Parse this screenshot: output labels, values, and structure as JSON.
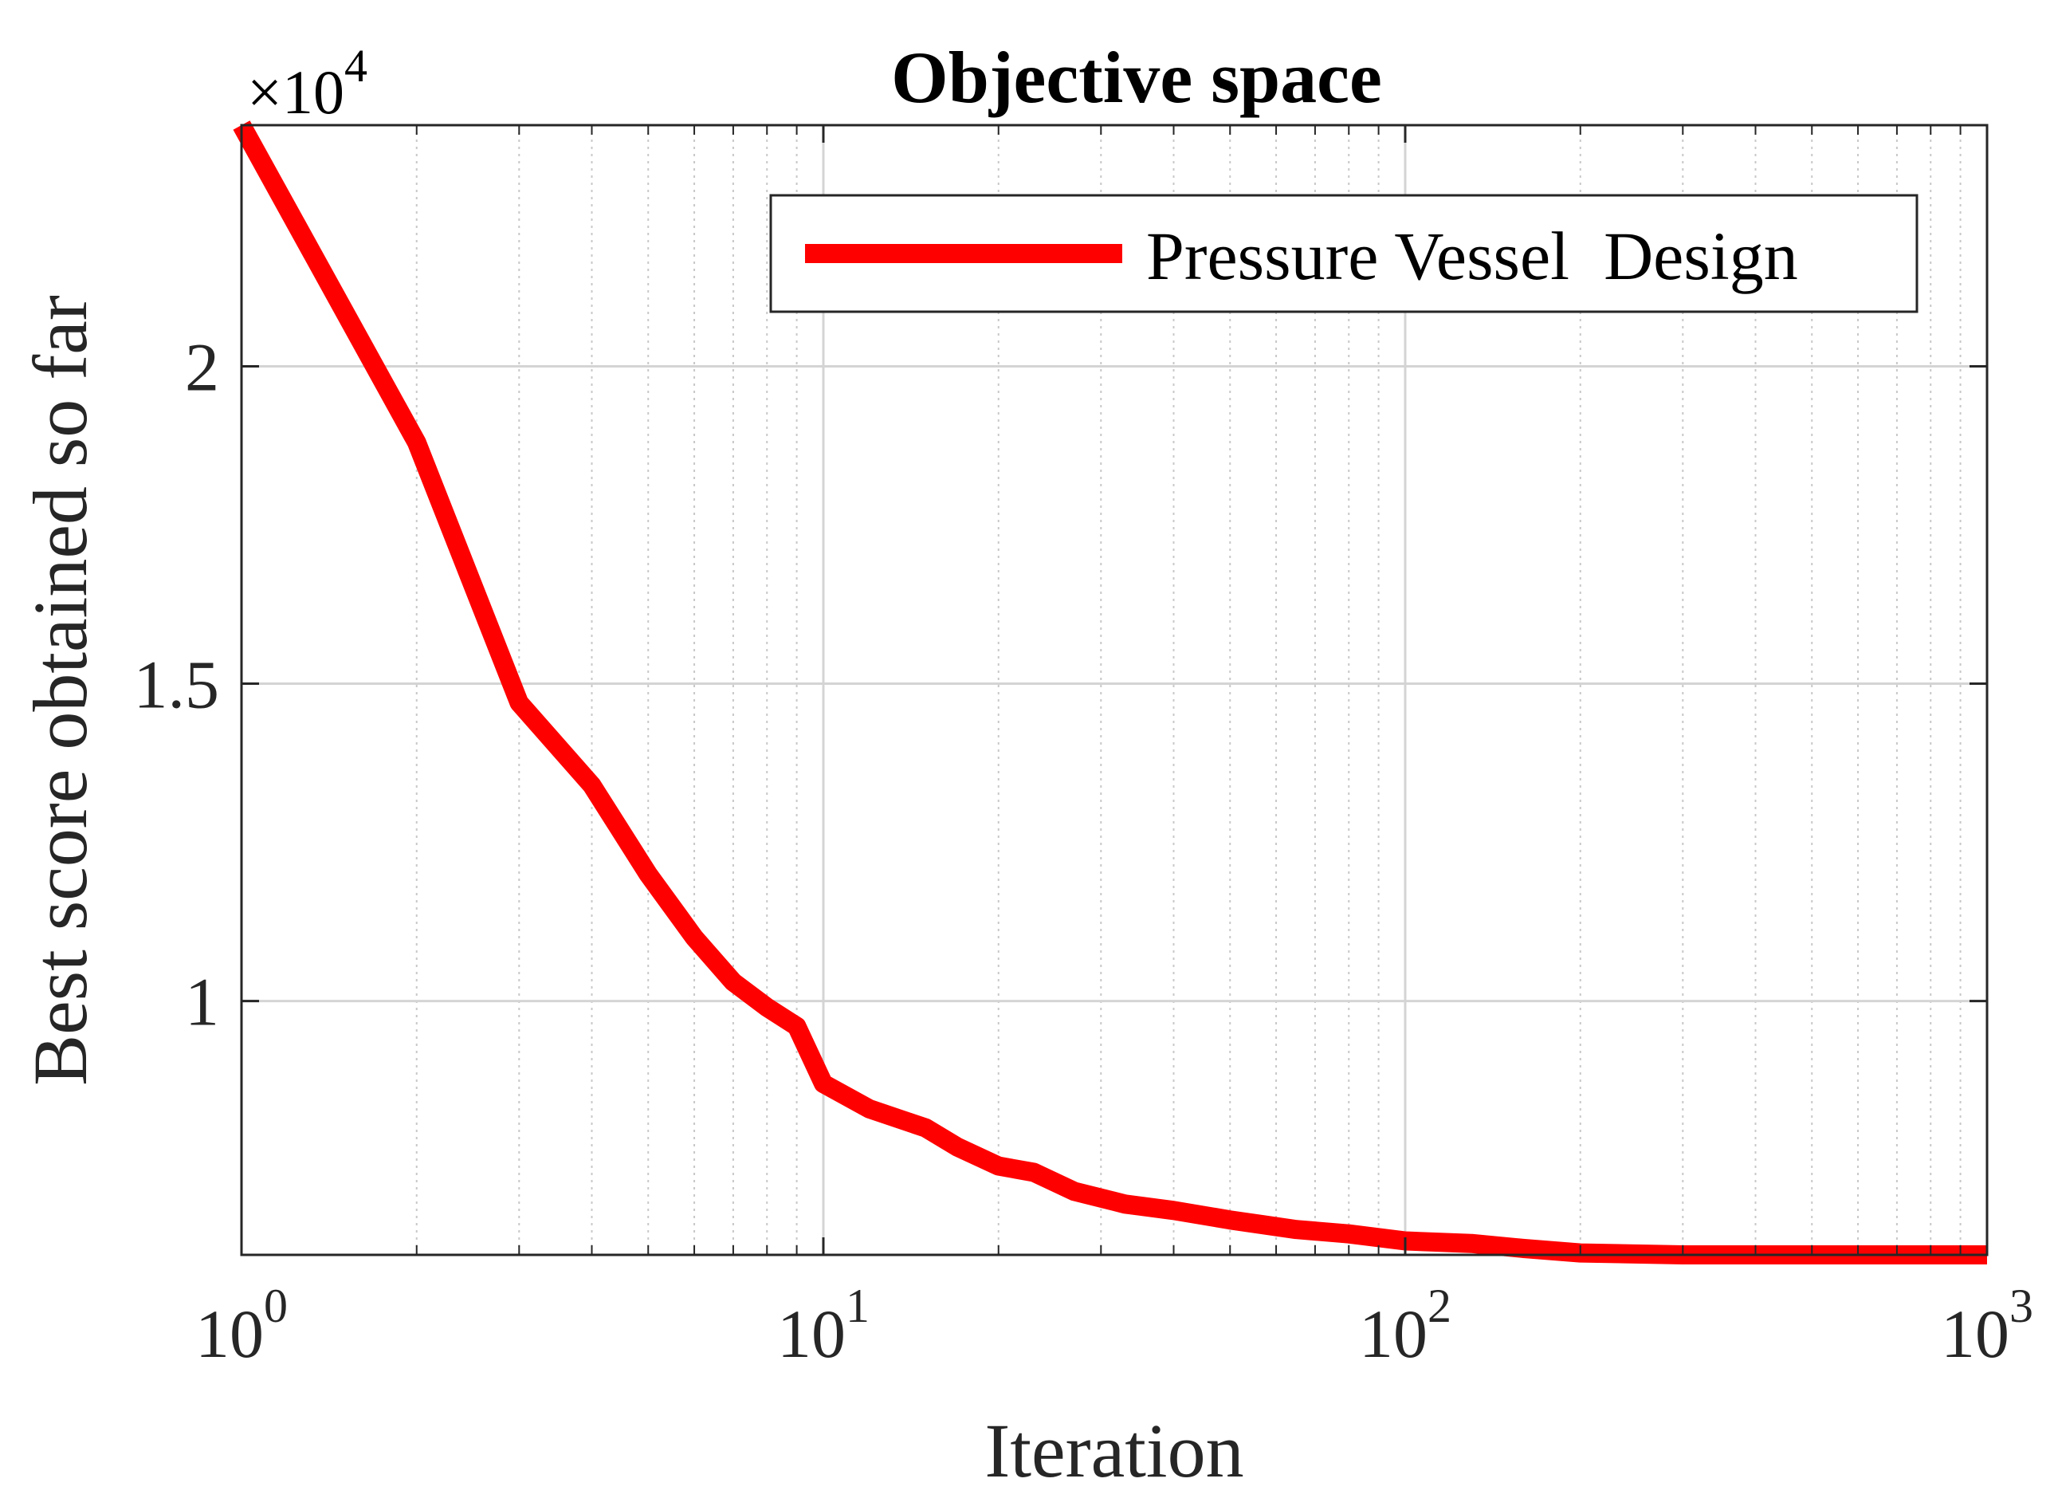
{
  "chart_data": {
    "type": "line",
    "title": "Objective space",
    "xlabel": "Iteration",
    "ylabel": "Best score obtained so far",
    "y_exponent_label": "×10",
    "y_exponent_power": "4",
    "x_scale": "log",
    "xlim": [
      1,
      1000
    ],
    "ylim": [
      6000,
      23800
    ],
    "x_ticks": [
      {
        "base": "10",
        "exp": "0",
        "value": 1
      },
      {
        "base": "10",
        "exp": "1",
        "value": 10
      },
      {
        "base": "10",
        "exp": "2",
        "value": 100
      },
      {
        "base": "10",
        "exp": "3",
        "value": 1000
      }
    ],
    "y_ticks": [
      {
        "label": "1",
        "value": 10000
      },
      {
        "label": "1.5",
        "value": 15000
      },
      {
        "label": "2",
        "value": 20000
      }
    ],
    "grid": true,
    "legend_position": "top-right",
    "series": [
      {
        "name": "Pressure Vessel  Design",
        "color": "#ff0000",
        "x": [
          1,
          2,
          3,
          4,
          5,
          6,
          7,
          8,
          9,
          10,
          12,
          15,
          17,
          20,
          23,
          27,
          33,
          40,
          50,
          65,
          80,
          100,
          130,
          160,
          200,
          300,
          500,
          1000
        ],
        "y": [
          23800,
          18800,
          14700,
          13400,
          12000,
          11000,
          10300,
          9900,
          9600,
          8700,
          8300,
          8000,
          7700,
          7400,
          7300,
          7000,
          6800,
          6700,
          6550,
          6400,
          6330,
          6220,
          6180,
          6100,
          6030,
          6000,
          6000,
          6000
        ]
      }
    ]
  }
}
